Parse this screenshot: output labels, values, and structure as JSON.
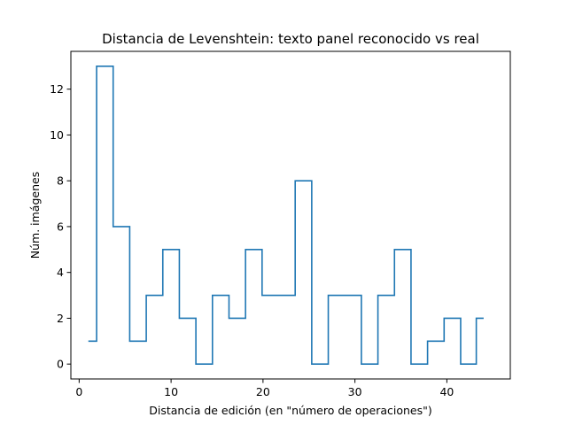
{
  "chart_data": {
    "type": "line",
    "style": "step",
    "title": "Distancia de Levenshtein: texto panel reconocido vs real",
    "xlabel": "Distancia de edición (en \"número de operaciones\")",
    "ylabel": "Núm. imágenes",
    "xlim": [
      -0.9,
      46.9
    ],
    "ylim": [
      -0.65,
      13.65
    ],
    "x_ticks": [
      0,
      10,
      20,
      30,
      40
    ],
    "y_ticks": [
      0,
      2,
      4,
      6,
      8,
      10,
      12
    ],
    "grid": false,
    "line_color": "#1f77b4",
    "series": [
      {
        "x": [
          1.0,
          2.8,
          4.6,
          6.4,
          8.2,
          10.0,
          11.8,
          13.6,
          15.4,
          17.2,
          19.0,
          20.8,
          22.6,
          24.4,
          26.2,
          28.0,
          29.8,
          31.6,
          33.4,
          35.2,
          37.0,
          38.8,
          40.6,
          42.4,
          44.0
        ],
        "y": [
          1,
          13,
          6,
          1,
          3,
          5,
          2,
          0,
          3,
          2,
          5,
          3,
          3,
          8,
          0,
          3,
          3,
          0,
          3,
          5,
          0,
          1,
          2,
          0,
          2
        ]
      }
    ]
  }
}
